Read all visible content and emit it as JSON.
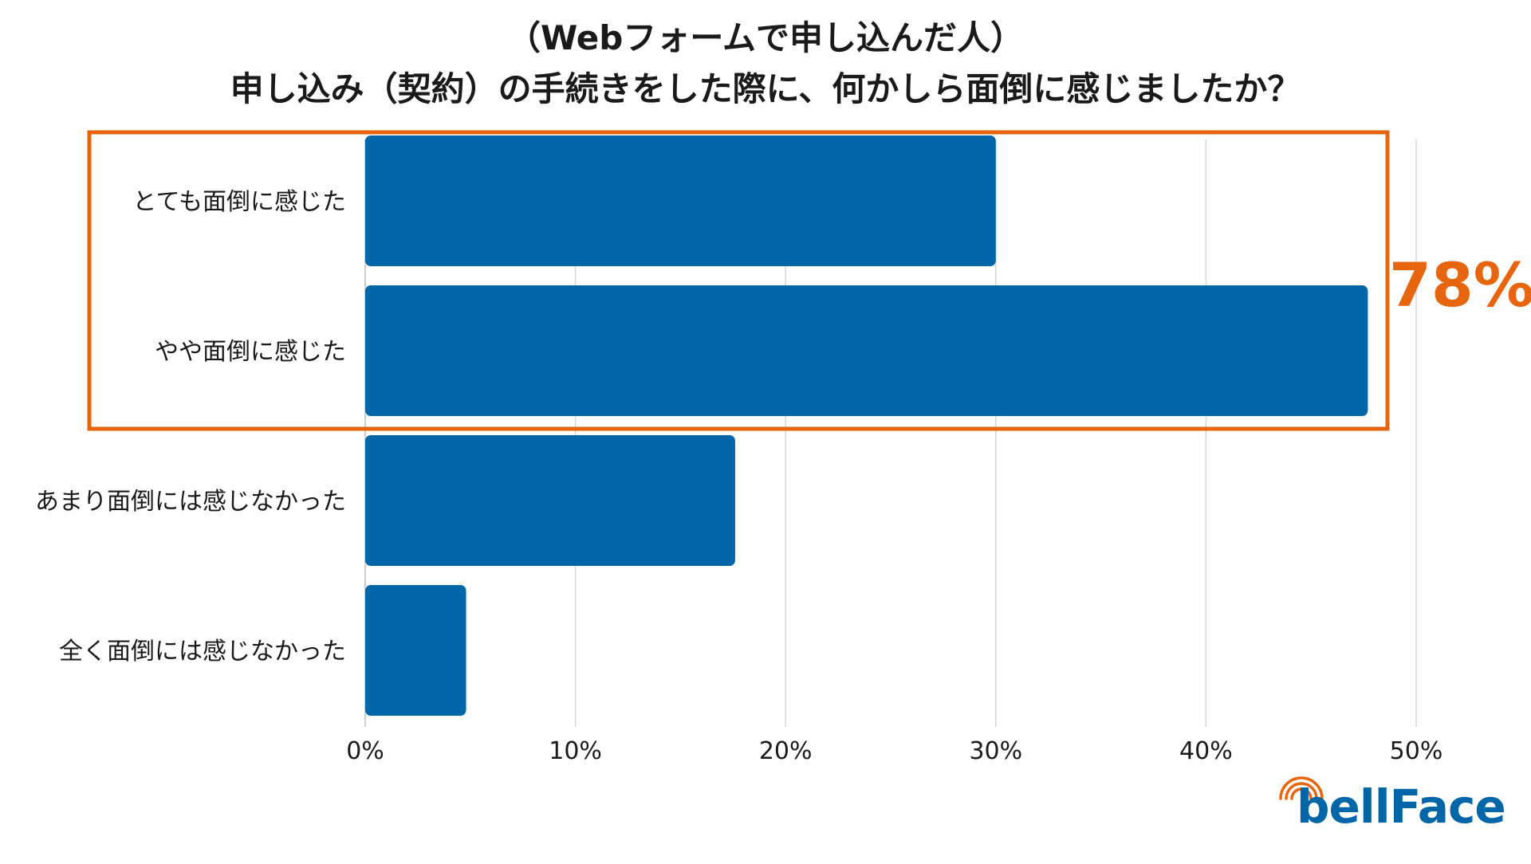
{
  "chart_data": {
    "type": "bar",
    "orientation": "horizontal",
    "title_line1": "（Webフォームで申し込んだ人）",
    "title_line2": "申し込み（契約）の手続きをした際に、何かしら面倒に感じましたか？",
    "categories": [
      "とても面倒に感じた",
      "やや面倒に感じた",
      "あまり面倒には感じなかった",
      "全く面倒には感じなかった"
    ],
    "values": [
      30,
      47.7,
      17.6,
      4.8
    ],
    "xlim": [
      0,
      50
    ],
    "x_ticks": [
      0,
      10,
      20,
      30,
      40,
      50
    ],
    "x_tick_labels": [
      "0%",
      "10%",
      "20%",
      "30%",
      "40%",
      "50%"
    ],
    "grid": "vertical",
    "highlight": {
      "categories": [
        "とても面倒に感じた",
        "やや面倒に感じた"
      ],
      "label": "78%"
    },
    "colors": {
      "bar": "#0066a8",
      "highlight": "#e8650f",
      "grid": "#d6d6d6",
      "text": "#1a1a1a",
      "logo_main": "#0066a8",
      "logo_accent": "#e8650f"
    }
  },
  "brand": {
    "logo_text": "bellFace"
  }
}
